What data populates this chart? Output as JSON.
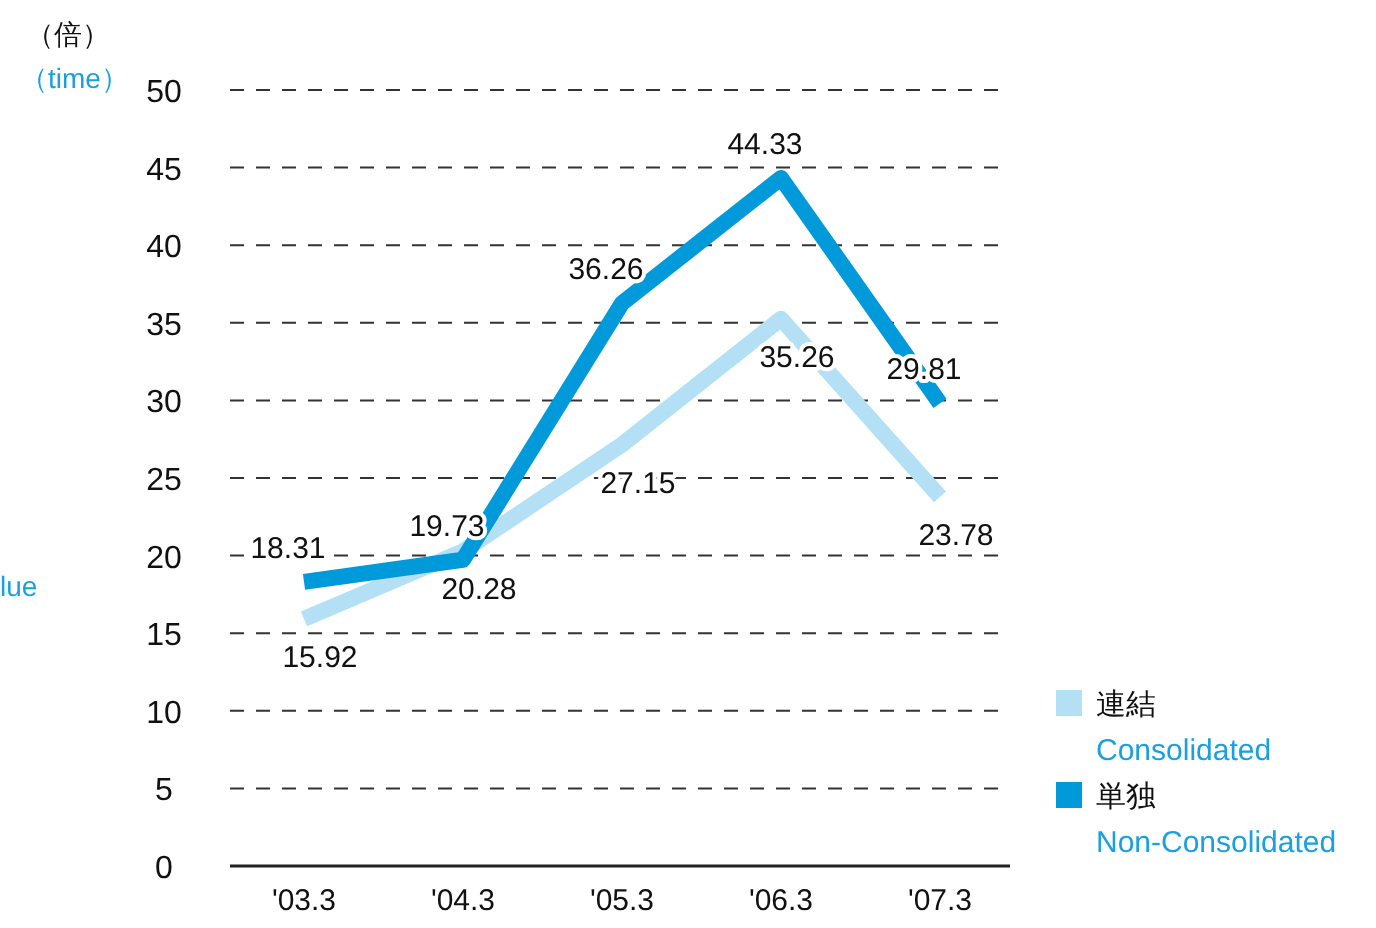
{
  "chart_data": {
    "type": "line",
    "ylabel": "（倍）",
    "categories": [
      "'03.3",
      "'04.3",
      "'05.3",
      "'06.3",
      "'07.3"
    ],
    "series": [
      {
        "name": "連結\nConsolidated",
        "color": "#b3e0f5",
        "values": [
          15.92,
          20.28,
          27.15,
          35.26,
          23.78
        ]
      },
      {
        "name": "単独\nNon-Consolidated",
        "color": "#0099d9",
        "values": [
          18.31,
          19.73,
          36.26,
          44.33,
          29.81
        ]
      }
    ],
    "ylim": [
      0,
      50
    ],
    "yticks": [
      0,
      5,
      10,
      15,
      20,
      25,
      30,
      35,
      40,
      45,
      50
    ],
    "grid": "y",
    "legend": "bottom right",
    "data_labels": true,
    "marker": "none",
    "line_style": "solid",
    "annotations": [
      "（time）",
      "lue"
    ]
  }
}
